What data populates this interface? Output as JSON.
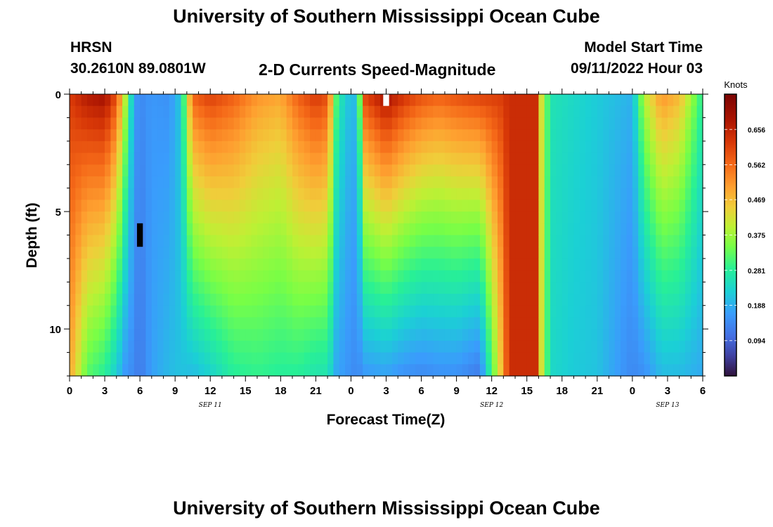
{
  "page": {
    "title": "University of Southern Mississippi Ocean Cube",
    "title_repeat": "University of Southern Mississippi Ocean Cube",
    "station": "HRSN",
    "coords": "30.2610N  89.0801W",
    "plot_title": "2-D Currents Speed-Magnitude",
    "model_start_label": "Model Start Time",
    "model_start_value": "09/11/2022 Hour 03"
  },
  "chart_data": {
    "type": "heatmap",
    "title": "2-D Currents Speed-Magnitude",
    "xlabel": "Forecast Time(Z)",
    "ylabel": "Depth (ft)",
    "x_hours_range": [
      0,
      54
    ],
    "x_tick_labels": [
      "0",
      "3",
      "6",
      "9",
      "12",
      "15",
      "18",
      "21",
      "0",
      "3",
      "6",
      "9",
      "12",
      "15",
      "18",
      "21",
      "0",
      "3",
      "6"
    ],
    "date_labels": [
      {
        "text": "SEP 11",
        "hour": 12
      },
      {
        "text": "SEP 12",
        "hour": 36
      },
      {
        "text": "SEP 13",
        "hour": 51
      }
    ],
    "y_range": [
      0,
      12
    ],
    "y_tick_labels": [
      "0",
      "5",
      "10"
    ],
    "y_tick_values": [
      0,
      5,
      10
    ],
    "colorbar": {
      "label": "Knots",
      "range": [
        0.0,
        0.75
      ],
      "tick_labels": [
        "0.656",
        "0.562",
        "0.469",
        "0.375",
        "0.281",
        "0.188",
        "0.094"
      ],
      "tick_values": [
        0.656,
        0.562,
        0.469,
        0.375,
        0.281,
        0.188,
        0.094
      ]
    },
    "time_step_hours": 0.5,
    "depth_levels": 12,
    "profile_keys": [
      {
        "hour": 0.0,
        "surface": 0.62,
        "bottom": 0.5
      },
      {
        "hour": 1.5,
        "surface": 0.68,
        "bottom": 0.32
      },
      {
        "hour": 3.0,
        "surface": 0.7,
        "bottom": 0.28
      },
      {
        "hour": 4.0,
        "surface": 0.6,
        "bottom": 0.22
      },
      {
        "hour": 4.75,
        "surface": 0.4,
        "bottom": 0.16
      },
      {
        "hour": 5.5,
        "surface": 0.17,
        "bottom": 0.14
      },
      {
        "hour": 6.0,
        "surface": 0.14,
        "bottom": 0.12
      },
      {
        "hour": 7.0,
        "surface": 0.16,
        "bottom": 0.17
      },
      {
        "hour": 8.5,
        "surface": 0.15,
        "bottom": 0.2
      },
      {
        "hour": 9.5,
        "surface": 0.22,
        "bottom": 0.21
      },
      {
        "hour": 10.5,
        "surface": 0.58,
        "bottom": 0.2
      },
      {
        "hour": 12.0,
        "surface": 0.62,
        "bottom": 0.23
      },
      {
        "hour": 14.0,
        "surface": 0.58,
        "bottom": 0.28
      },
      {
        "hour": 16.0,
        "surface": 0.52,
        "bottom": 0.29
      },
      {
        "hour": 18.0,
        "surface": 0.5,
        "bottom": 0.28
      },
      {
        "hour": 19.5,
        "surface": 0.58,
        "bottom": 0.28
      },
      {
        "hour": 21.0,
        "surface": 0.63,
        "bottom": 0.26
      },
      {
        "hour": 22.0,
        "surface": 0.6,
        "bottom": 0.26
      },
      {
        "hour": 22.75,
        "surface": 0.32,
        "bottom": 0.18
      },
      {
        "hour": 23.5,
        "surface": 0.22,
        "bottom": 0.16
      },
      {
        "hour": 24.5,
        "surface": 0.2,
        "bottom": 0.14
      },
      {
        "hour": 25.25,
        "surface": 0.62,
        "bottom": 0.16
      },
      {
        "hour": 27.0,
        "surface": 0.7,
        "bottom": 0.17
      },
      {
        "hour": 28.5,
        "surface": 0.64,
        "bottom": 0.15
      },
      {
        "hour": 30.0,
        "surface": 0.6,
        "bottom": 0.14
      },
      {
        "hour": 31.5,
        "surface": 0.58,
        "bottom": 0.15
      },
      {
        "hour": 33.0,
        "surface": 0.6,
        "bottom": 0.15
      },
      {
        "hour": 35.0,
        "surface": 0.62,
        "bottom": 0.12
      },
      {
        "hour": 36.75,
        "surface": 0.62,
        "bottom": 0.45
      },
      {
        "hour": 37.5,
        "surface": 0.64,
        "bottom": 0.64
      },
      {
        "hour": 39.75,
        "surface": 0.64,
        "bottom": 0.64
      },
      {
        "hour": 40.25,
        "surface": 0.42,
        "bottom": 0.42
      },
      {
        "hour": 41.0,
        "surface": 0.26,
        "bottom": 0.24
      },
      {
        "hour": 43.0,
        "surface": 0.24,
        "bottom": 0.22
      },
      {
        "hour": 45.0,
        "surface": 0.22,
        "bottom": 0.21
      },
      {
        "hour": 47.0,
        "surface": 0.2,
        "bottom": 0.16
      },
      {
        "hour": 48.0,
        "surface": 0.19,
        "bottom": 0.14
      },
      {
        "hour": 49.0,
        "surface": 0.4,
        "bottom": 0.15
      },
      {
        "hour": 50.5,
        "surface": 0.52,
        "bottom": 0.2
      },
      {
        "hour": 52.0,
        "surface": 0.48,
        "bottom": 0.2
      },
      {
        "hour": 53.0,
        "surface": 0.38,
        "bottom": 0.19
      },
      {
        "hour": 54.0,
        "surface": 0.28,
        "bottom": 0.18
      }
    ],
    "masked_cells": [
      {
        "hour": 6.0,
        "depth_from": 5.5,
        "depth_to": 6.5,
        "color": "#000000"
      },
      {
        "hour": 27.0,
        "depth_from": 0.0,
        "depth_to": 0.5,
        "color": "#ffffff"
      }
    ]
  }
}
